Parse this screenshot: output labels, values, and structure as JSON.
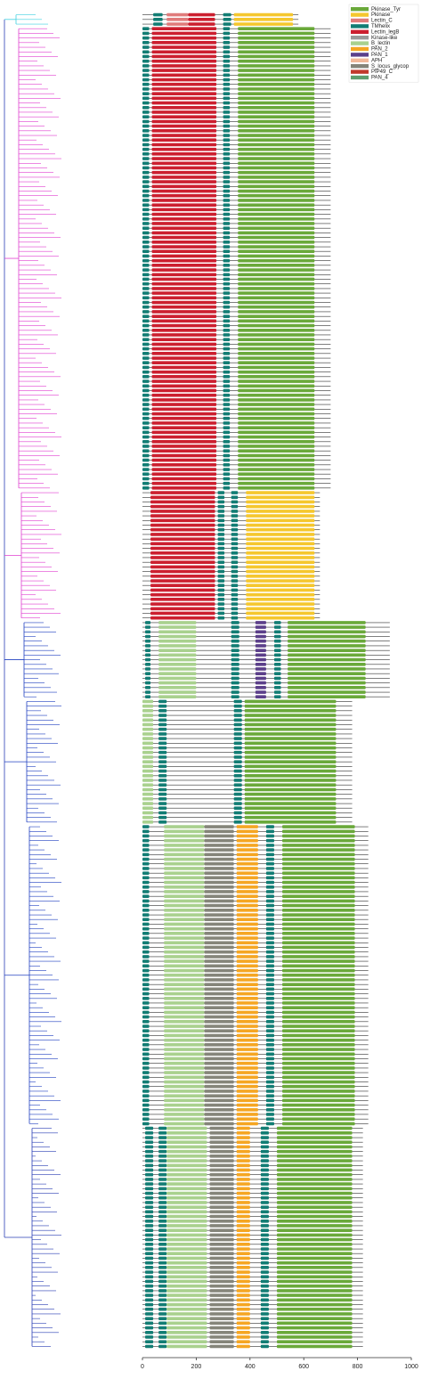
{
  "chart_data": {
    "type": "domain-architecture",
    "xlim": [
      0,
      1000
    ],
    "xticks": [
      0,
      200,
      400,
      600,
      800,
      1000
    ],
    "legend": [
      {
        "name": "Pkinase_Tyr",
        "color": "#6aa93a"
      },
      {
        "name": "Pkinase",
        "color": "#f5c72e"
      },
      {
        "name": "Lectin_C",
        "color": "#e07b7b"
      },
      {
        "name": "TMhelix",
        "color": "#127d74"
      },
      {
        "name": "Lectin_legB",
        "color": "#cc1f2f"
      },
      {
        "name": "Kinase-like",
        "color": "#9a9a9a"
      },
      {
        "name": "B_lectin",
        "color": "#a9d18e"
      },
      {
        "name": "PAN_2",
        "color": "#f5a623"
      },
      {
        "name": "PAN_1",
        "color": "#5b3f8a"
      },
      {
        "name": "APH",
        "color": "#f2b99a"
      },
      {
        "name": "S_locus_glycop",
        "color": "#85857a"
      },
      {
        "name": "PIP49_C",
        "color": "#c0392b"
      },
      {
        "name": "PAN_4",
        "color": "#5f9e6e"
      }
    ],
    "blocks": [
      {
        "color": "#3fd0e0",
        "count": 3,
        "length": 580,
        "domains": [
          [
            "TMhelix",
            40,
            75
          ],
          [
            "Lectin_C",
            90,
            170
          ],
          [
            "Lectin_legB",
            170,
            270
          ],
          [
            "TMhelix",
            300,
            330
          ],
          [
            "Pkinase",
            340,
            560
          ]
        ]
      },
      {
        "color": "#e040d0",
        "count": 100,
        "length": 700,
        "domains": [
          [
            "TMhelix",
            0,
            25
          ],
          [
            "Lectin_legB",
            35,
            275
          ],
          [
            "TMhelix",
            300,
            325
          ],
          [
            "Pkinase_Tyr",
            355,
            640
          ]
        ]
      },
      {
        "color": "#e040d0",
        "count": 28,
        "length": 660,
        "domains": [
          [
            "Lectin_legB",
            30,
            270
          ],
          [
            "TMhelix",
            280,
            305
          ],
          [
            "TMhelix",
            330,
            355
          ],
          [
            "Pkinase",
            385,
            640
          ]
        ]
      },
      {
        "color": "#2040c0",
        "count": 17,
        "length": 920,
        "domains": [
          [
            "TMhelix",
            10,
            30
          ],
          [
            "B_lectin",
            60,
            200
          ],
          [
            "TMhelix",
            330,
            360
          ],
          [
            "PAN_1",
            420,
            460
          ],
          [
            "TMhelix",
            490,
            515
          ],
          [
            "Pkinase_Tyr",
            540,
            830
          ]
        ]
      },
      {
        "color": "#2040c0",
        "count": 27,
        "length": 780,
        "domains": [
          [
            "B_lectin",
            0,
            40
          ],
          [
            "TMhelix",
            60,
            90
          ],
          [
            "TMhelix",
            340,
            370
          ],
          [
            "Pkinase_Tyr",
            380,
            720
          ]
        ]
      },
      {
        "color": "#2040c0",
        "count": 65,
        "length": 840,
        "domains": [
          [
            "TMhelix",
            0,
            25
          ],
          [
            "B_lectin",
            80,
            230
          ],
          [
            "S_locus_glycop",
            230,
            340
          ],
          [
            "PAN_2",
            350,
            430
          ],
          [
            "TMhelix",
            460,
            490
          ],
          [
            "Pkinase_Tyr",
            520,
            790
          ]
        ]
      },
      {
        "color": "#2a3fb5",
        "count": 48,
        "length": 820,
        "domains": [
          [
            "TMhelix",
            10,
            40
          ],
          [
            "TMhelix",
            60,
            90
          ],
          [
            "B_lectin",
            90,
            240
          ],
          [
            "S_locus_glycop",
            250,
            340
          ],
          [
            "PAN_2",
            350,
            400
          ],
          [
            "TMhelix",
            440,
            470
          ],
          [
            "Pkinase_Tyr",
            500,
            780
          ]
        ]
      }
    ]
  }
}
